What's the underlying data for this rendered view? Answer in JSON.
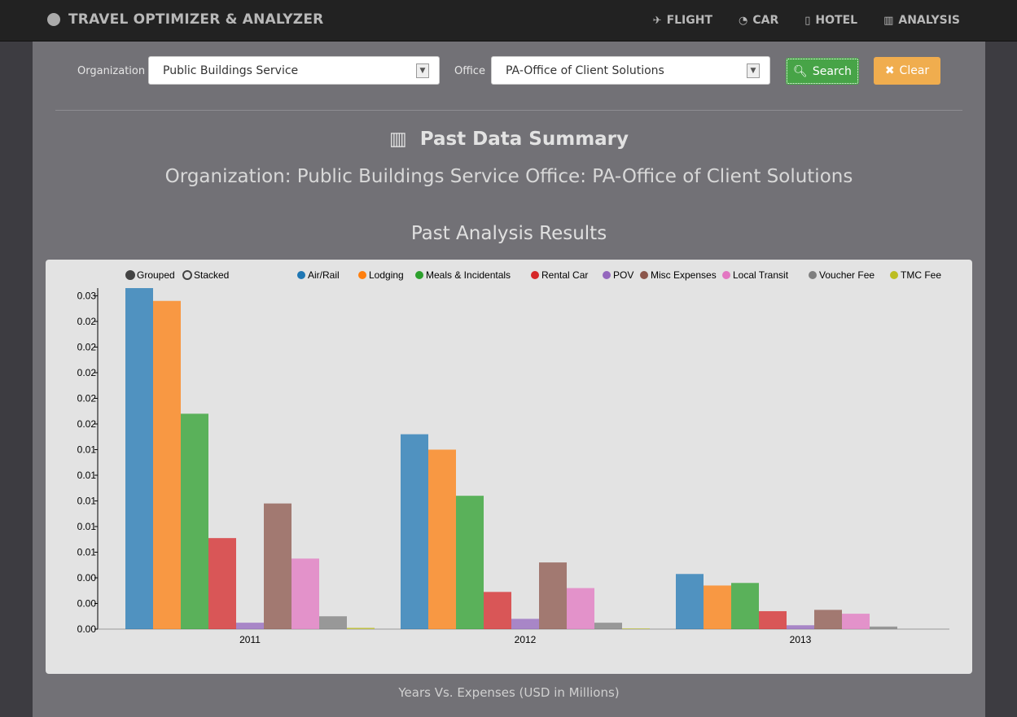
{
  "nav": {
    "brand": "TRAVEL OPTIMIZER & ANALYZER",
    "items": [
      {
        "label": "FLIGHT",
        "icon": "plane-icon",
        "glyph": "✈"
      },
      {
        "label": "CAR",
        "icon": "dashboard-icon",
        "glyph": "◔"
      },
      {
        "label": "HOTEL",
        "icon": "building-icon",
        "glyph": "▯"
      },
      {
        "label": "ANALYSIS",
        "icon": "bar-chart-icon",
        "glyph": "▥"
      }
    ]
  },
  "filters": {
    "org_label": "Organization",
    "org_value": "Public Buildings Service",
    "office_label": "Office",
    "office_value": "PA-Office of Client Solutions",
    "search": "Search",
    "clear": "Clear"
  },
  "summary": {
    "title": "Past Data Summary",
    "subtitle": "Organization: Public Buildings Service Office: PA-Office of Client Solutions",
    "results_title": "Past Analysis Results",
    "footer": "Years Vs. Expenses (USD in Millions)"
  },
  "chart_data": {
    "type": "bar",
    "mode_controls": [
      {
        "label": "Grouped",
        "selected": true
      },
      {
        "label": "Stacked",
        "selected": false
      }
    ],
    "categories": [
      "2011",
      "2012",
      "2013"
    ],
    "xlabel": "",
    "ylabel": "",
    "ylim": [
      0,
      0.0266
    ],
    "yticks": [
      0,
      0.002,
      0.004,
      0.006,
      0.008,
      0.01,
      0.012,
      0.014,
      0.016,
      0.018,
      0.02,
      0.022,
      0.024,
      0.026
    ],
    "ytick_decimals": 2,
    "legend_position": "top-right",
    "series": [
      {
        "name": "Air/Rail",
        "color": "#1f77b4",
        "values": [
          0.0266,
          0.0152,
          0.0043
        ]
      },
      {
        "name": "Lodging",
        "color": "#ff7f0e",
        "values": [
          0.0256,
          0.014,
          0.0034
        ]
      },
      {
        "name": "Meals & Incidentals",
        "color": "#2ca02c",
        "values": [
          0.0168,
          0.0104,
          0.0036
        ]
      },
      {
        "name": "Rental Car",
        "color": "#d62728",
        "values": [
          0.0071,
          0.0029,
          0.0014
        ]
      },
      {
        "name": "POV",
        "color": "#9467bd",
        "values": [
          0.0005,
          0.0008,
          0.0003
        ]
      },
      {
        "name": "Misc Expenses",
        "color": "#8c564b",
        "values": [
          0.0098,
          0.0052,
          0.0015
        ]
      },
      {
        "name": "Local Transit",
        "color": "#e377c2",
        "values": [
          0.0055,
          0.0032,
          0.0012
        ]
      },
      {
        "name": "Voucher Fee",
        "color": "#7f7f7f",
        "values": [
          0.001,
          0.0005,
          0.0002
        ]
      },
      {
        "name": "TMC Fee",
        "color": "#bcbd22",
        "values": [
          0.0001,
          5e-05,
          0
        ]
      }
    ]
  }
}
